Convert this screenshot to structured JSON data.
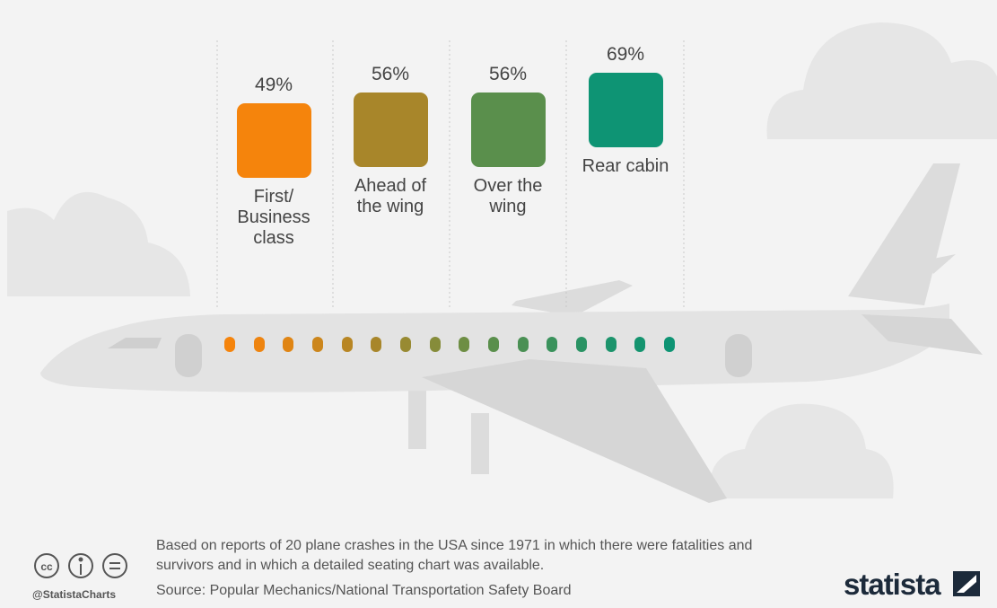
{
  "chart_data": {
    "type": "bar",
    "categories": [
      "First/ Business class",
      "Ahead of the wing",
      "Over the wing",
      "Rear cabin"
    ],
    "values": [
      49,
      56,
      56,
      69
    ],
    "value_labels": [
      "49%",
      "56%",
      "56%",
      "69%"
    ],
    "colors": [
      "#f5840c",
      "#a8862a",
      "#5a8f4c",
      "#0e9474"
    ]
  },
  "footnote": "Based on reports of 20 plane crashes in the USA since 1971 in which there were fatalities and survivors and in which a detailed seating chart was available.",
  "source": "Source: Popular Mechanics/National Transportation Safety Board",
  "handle": "@StatistaCharts",
  "brand": "statista"
}
